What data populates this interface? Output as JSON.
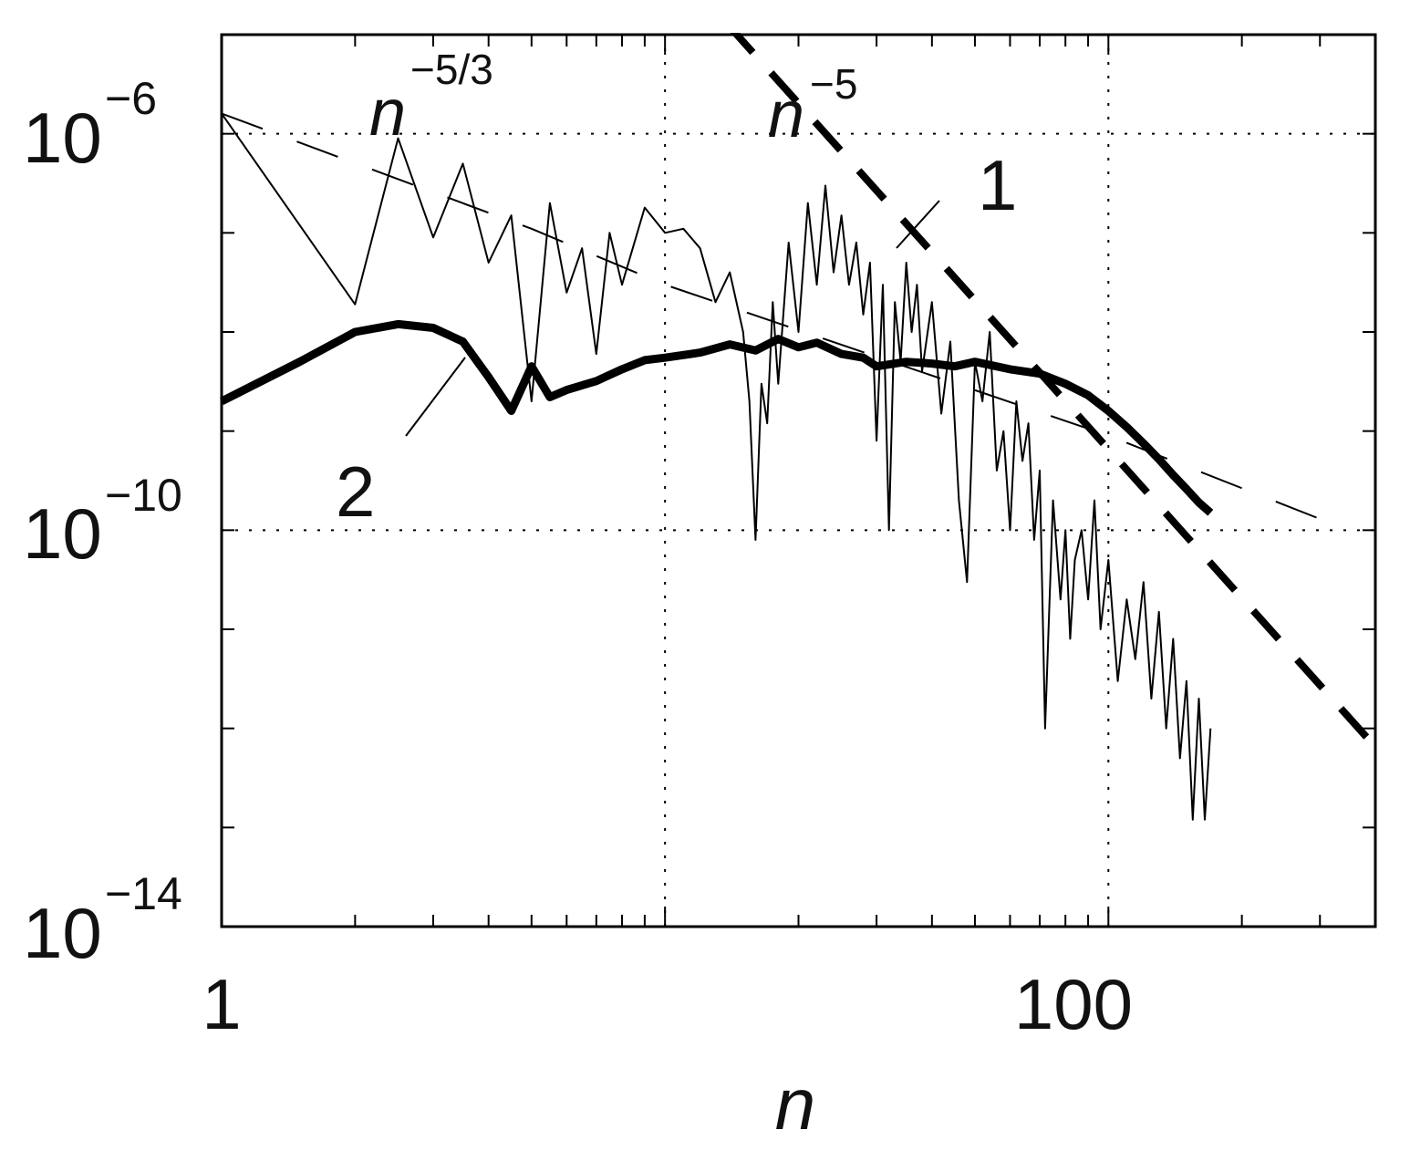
{
  "chart_data": {
    "type": "line",
    "x_scale": "log",
    "y_scale": "log",
    "xlabel": "n",
    "ylabel": "",
    "xlim": [
      1,
      400
    ],
    "ylim": [
      1e-14,
      1e-05
    ],
    "grid": true,
    "x_ticks": [
      {
        "value": 1,
        "label": "1"
      },
      {
        "value": 100,
        "label": "100"
      }
    ],
    "y_ticks": [
      {
        "value": 1e-14,
        "base": "10",
        "exp": "−14"
      },
      {
        "value": 1e-10,
        "base": "10",
        "exp": "−10"
      },
      {
        "value": 1e-06,
        "base": "10",
        "exp": "−6"
      }
    ],
    "series": [
      {
        "name": "1",
        "style": "thin",
        "points": [
          [
            1,
            1.6e-06
          ],
          [
            2,
            1.9e-08
          ],
          [
            2.5,
            9e-07
          ],
          [
            3,
            9e-08
          ],
          [
            3.5,
            5e-07
          ],
          [
            4,
            5e-08
          ],
          [
            4.5,
            1.5e-07
          ],
          [
            5,
            2e-09
          ],
          [
            5.5,
            2e-07
          ],
          [
            6,
            2.5e-08
          ],
          [
            6.5,
            7e-08
          ],
          [
            7,
            6e-09
          ],
          [
            7.5,
            1e-07
          ],
          [
            8,
            3e-08
          ],
          [
            9,
            1.8e-07
          ],
          [
            10,
            1e-07
          ],
          [
            11,
            1.1e-07
          ],
          [
            12,
            7e-08
          ],
          [
            13,
            2e-08
          ],
          [
            14,
            4e-08
          ],
          [
            15,
            1e-08
          ],
          [
            15.5,
            2e-09
          ],
          [
            16,
            8e-11
          ],
          [
            16.5,
            3e-09
          ],
          [
            17,
            1.2e-09
          ],
          [
            17.5,
            2e-08
          ],
          [
            18,
            3e-09
          ],
          [
            19,
            8e-08
          ],
          [
            20,
            1e-08
          ],
          [
            21,
            2e-07
          ],
          [
            22,
            3e-08
          ],
          [
            23,
            3e-07
          ],
          [
            24,
            4e-08
          ],
          [
            25,
            1.5e-07
          ],
          [
            26,
            3e-08
          ],
          [
            27,
            8e-08
          ],
          [
            28,
            1.5e-08
          ],
          [
            29,
            5e-08
          ],
          [
            30,
            8e-10
          ],
          [
            31,
            3e-08
          ],
          [
            32,
            1e-10
          ],
          [
            33,
            2e-08
          ],
          [
            34,
            5e-09
          ],
          [
            35,
            5e-08
          ],
          [
            36,
            1e-08
          ],
          [
            37,
            3e-08
          ],
          [
            38,
            4e-09
          ],
          [
            40,
            2e-08
          ],
          [
            42,
            1.5e-09
          ],
          [
            44,
            8e-09
          ],
          [
            46,
            2e-10
          ],
          [
            48,
            3e-11
          ],
          [
            50,
            5e-09
          ],
          [
            52,
            2e-09
          ],
          [
            54,
            1e-08
          ],
          [
            56,
            4e-10
          ],
          [
            58,
            1e-09
          ],
          [
            60,
            1e-10
          ],
          [
            62,
            2e-09
          ],
          [
            64,
            5e-10
          ],
          [
            66,
            1.2e-09
          ],
          [
            68,
            8e-11
          ],
          [
            70,
            4e-10
          ],
          [
            72,
            1e-12
          ],
          [
            75,
            2e-10
          ],
          [
            78,
            2e-11
          ],
          [
            80,
            1e-10
          ],
          [
            82,
            8e-12
          ],
          [
            84,
            5e-11
          ],
          [
            87,
            1e-10
          ],
          [
            90,
            2e-11
          ],
          [
            93,
            2e-10
          ],
          [
            96,
            1e-11
          ],
          [
            100,
            5e-11
          ],
          [
            105,
            3e-12
          ],
          [
            110,
            2e-11
          ],
          [
            115,
            5e-12
          ],
          [
            120,
            3e-11
          ],
          [
            125,
            2e-12
          ],
          [
            130,
            1.5e-11
          ],
          [
            135,
            1e-12
          ],
          [
            140,
            8e-12
          ],
          [
            145,
            5e-13
          ],
          [
            150,
            3e-12
          ],
          [
            155,
            1.2e-13
          ],
          [
            160,
            2e-12
          ],
          [
            165,
            1.2e-13
          ],
          [
            170,
            1e-12
          ]
        ]
      },
      {
        "name": "2",
        "style": "thick",
        "points": [
          [
            1,
            2e-09
          ],
          [
            1.5,
            5e-09
          ],
          [
            2,
            1e-08
          ],
          [
            2.5,
            1.2e-08
          ],
          [
            3,
            1.1e-08
          ],
          [
            3.5,
            8e-09
          ],
          [
            4,
            3.5e-09
          ],
          [
            4.5,
            1.6e-09
          ],
          [
            5,
            4.5e-09
          ],
          [
            5.5,
            2.2e-09
          ],
          [
            6,
            2.6e-09
          ],
          [
            7,
            3.2e-09
          ],
          [
            8,
            4.2e-09
          ],
          [
            9,
            5.2e-09
          ],
          [
            10,
            5.5e-09
          ],
          [
            12,
            6.2e-09
          ],
          [
            14,
            7.5e-09
          ],
          [
            16,
            6.5e-09
          ],
          [
            18,
            8.5e-09
          ],
          [
            20,
            7e-09
          ],
          [
            22,
            7.8e-09
          ],
          [
            25,
            6e-09
          ],
          [
            28,
            5.5e-09
          ],
          [
            30,
            4.5e-09
          ],
          [
            35,
            5e-09
          ],
          [
            40,
            4.8e-09
          ],
          [
            45,
            4.5e-09
          ],
          [
            50,
            5e-09
          ],
          [
            60,
            4.2e-09
          ],
          [
            70,
            3.8e-09
          ],
          [
            80,
            3e-09
          ],
          [
            90,
            2.3e-09
          ],
          [
            100,
            1.6e-09
          ],
          [
            110,
            1.1e-09
          ],
          [
            120,
            7.5e-10
          ],
          [
            130,
            5.2e-10
          ],
          [
            140,
            3.6e-10
          ],
          [
            150,
            2.6e-10
          ],
          [
            160,
            1.9e-10
          ],
          [
            170,
            1.5e-10
          ]
        ]
      },
      {
        "name": "",
        "style": "thin-dashed",
        "points": [
          [
            1,
            1.6e-06
          ],
          [
            5,
            1.1e-07
          ],
          [
            10,
            3e-08
          ],
          [
            100,
            9e-10
          ],
          [
            300,
            1.3e-10
          ]
        ]
      },
      {
        "name": "",
        "style": "thick-dashed",
        "points": [
          [
            11,
            4e-05
          ],
          [
            400,
            6.5e-13
          ]
        ]
      }
    ],
    "annotations": [
      {
        "kind": "curve-label",
        "text": "1"
      },
      {
        "kind": "curve-label",
        "text": "2"
      },
      {
        "kind": "slope-label",
        "base": "n",
        "exp": "−5/3"
      },
      {
        "kind": "slope-label",
        "base": "n",
        "exp": "−5"
      }
    ]
  },
  "style": {
    "line_color": "#000000",
    "grid_color": "#000000",
    "background": "#ffffff"
  }
}
